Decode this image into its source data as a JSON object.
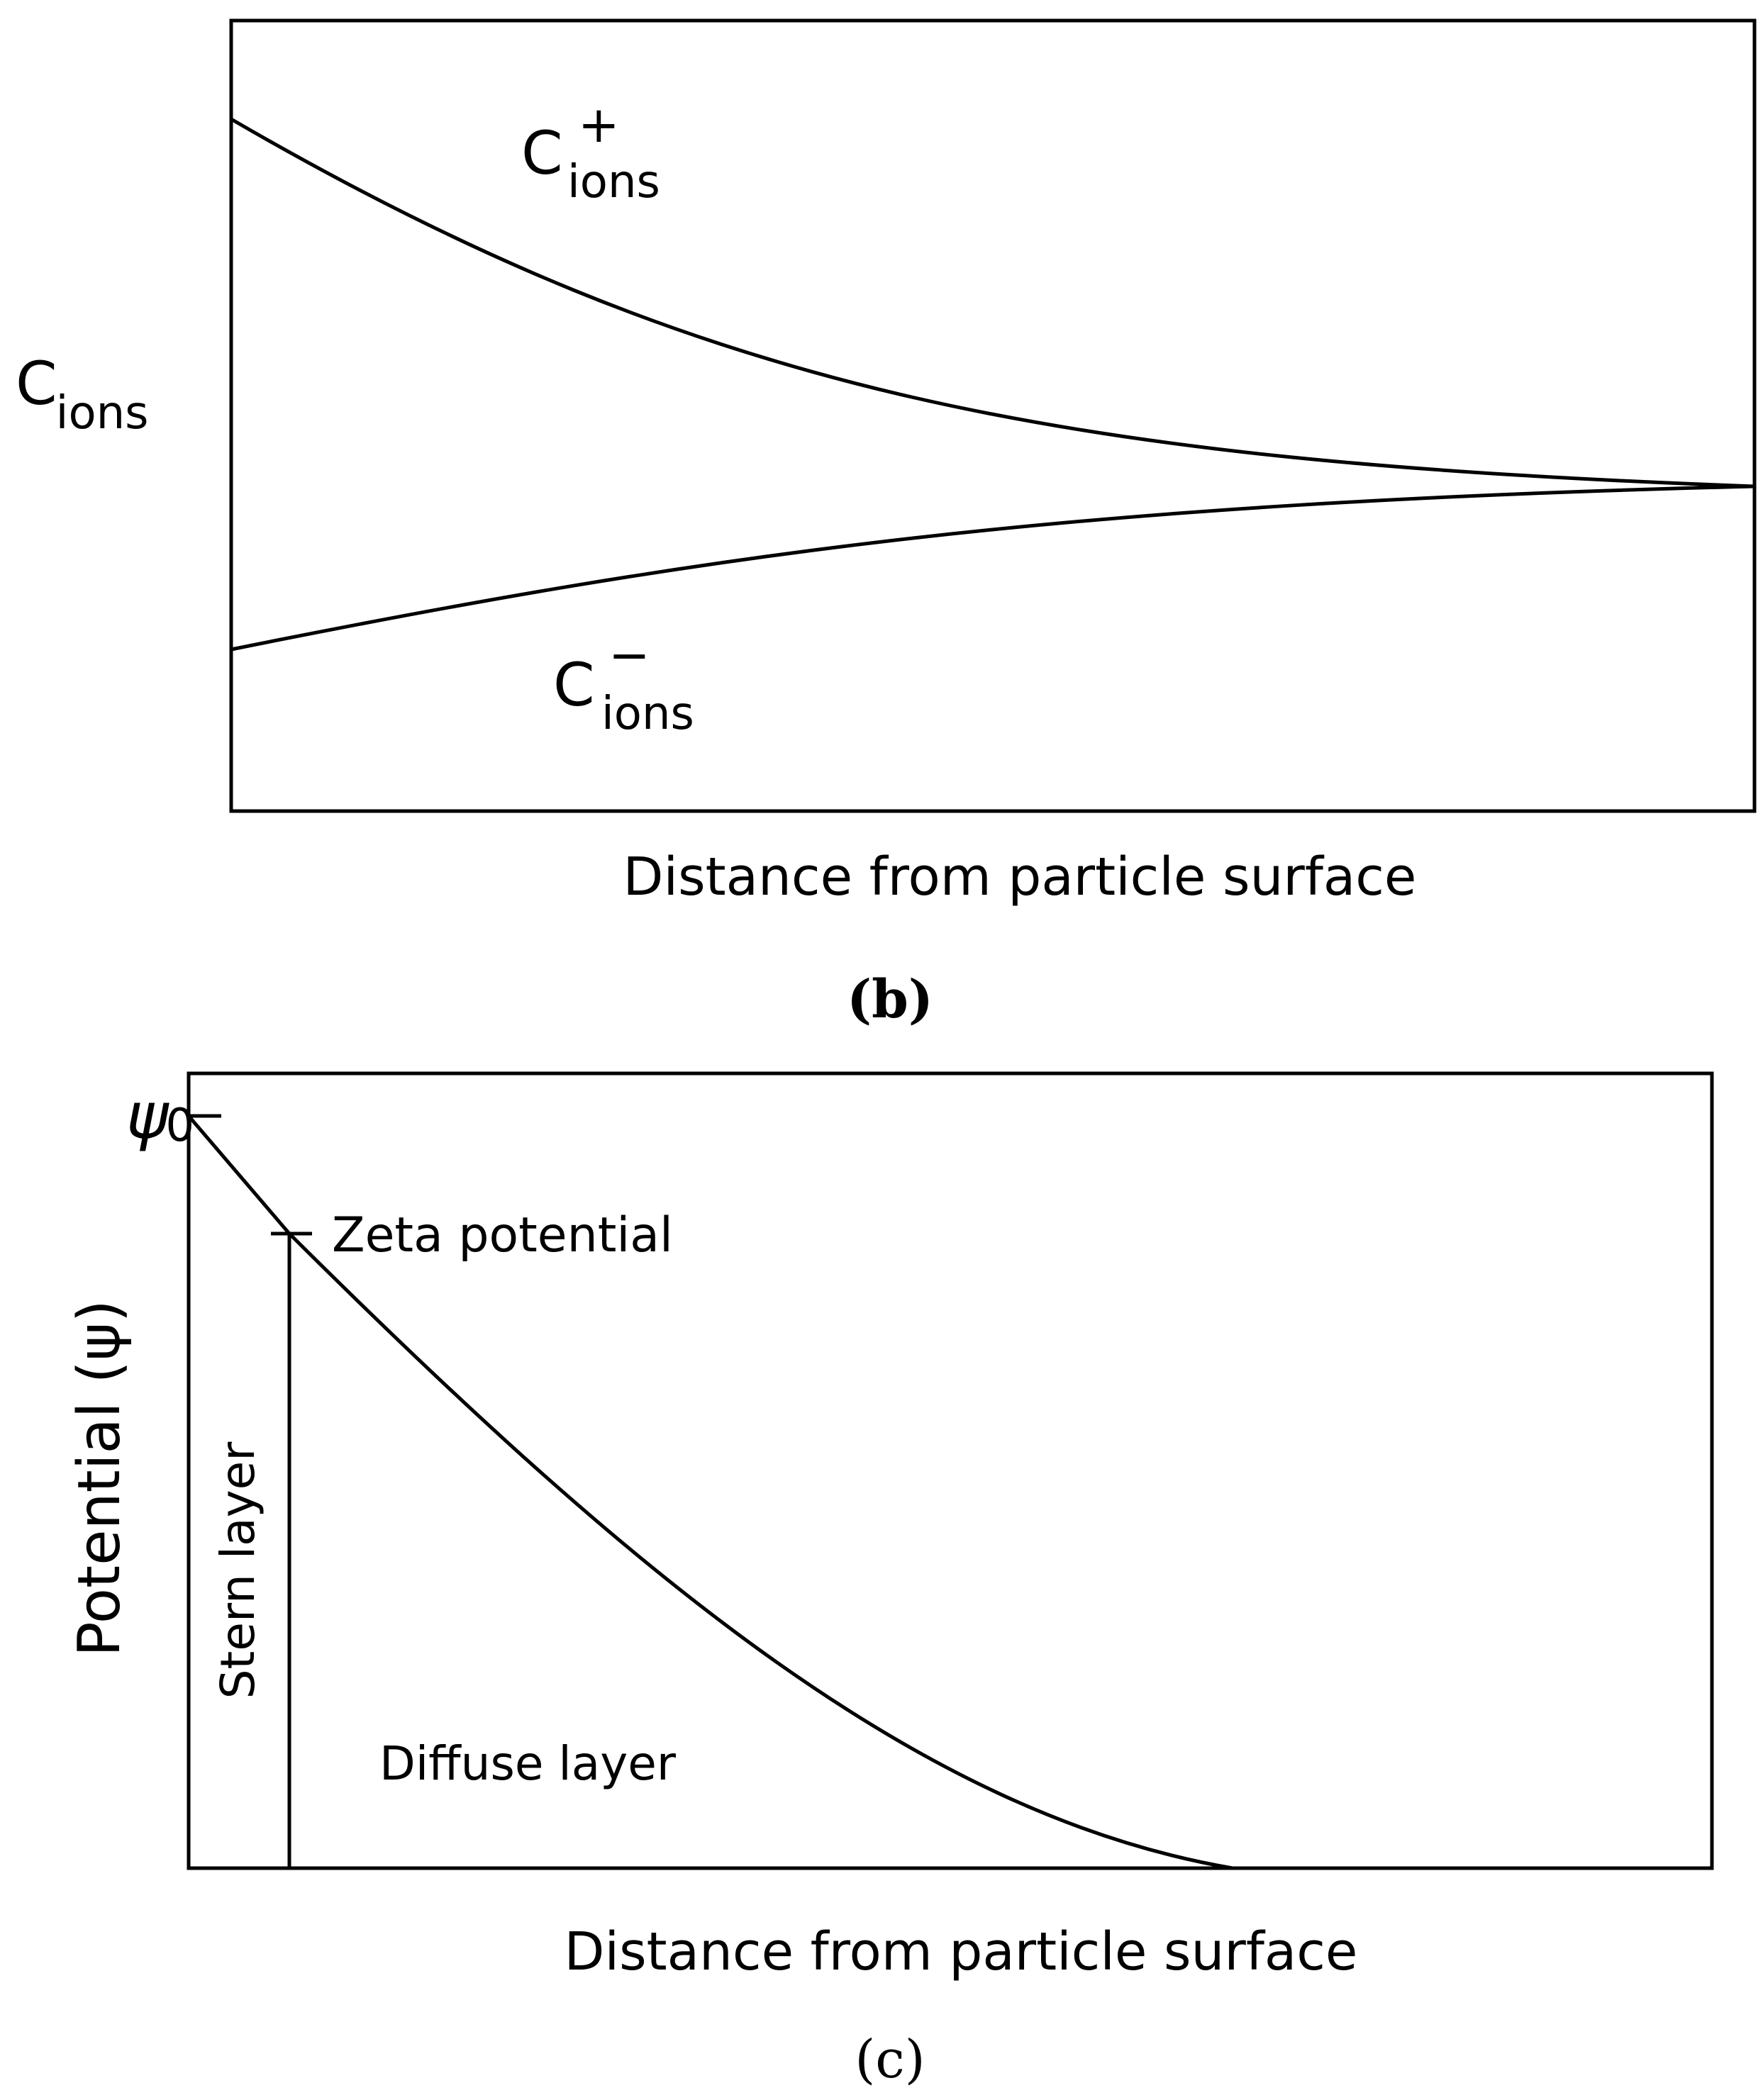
{
  "panel_b": {
    "y_label_main": "C",
    "y_label_sub": "ions",
    "x_label": "Distance from particle surface",
    "caption": "(b)",
    "series": [
      {
        "main": "C",
        "sign": "+",
        "sub": "ions"
      },
      {
        "main": "C",
        "sign": "−",
        "sub": "ions"
      }
    ]
  },
  "panel_c": {
    "y_label": "Potential (ψ)",
    "psi0_main": "ψ",
    "psi0_sub": "0",
    "zeta_label": "Zeta potential",
    "stern_label": "Stern layer",
    "diffuse_label": "Diffuse layer",
    "x_label": "Distance from particle surface",
    "caption": "(c)"
  }
}
